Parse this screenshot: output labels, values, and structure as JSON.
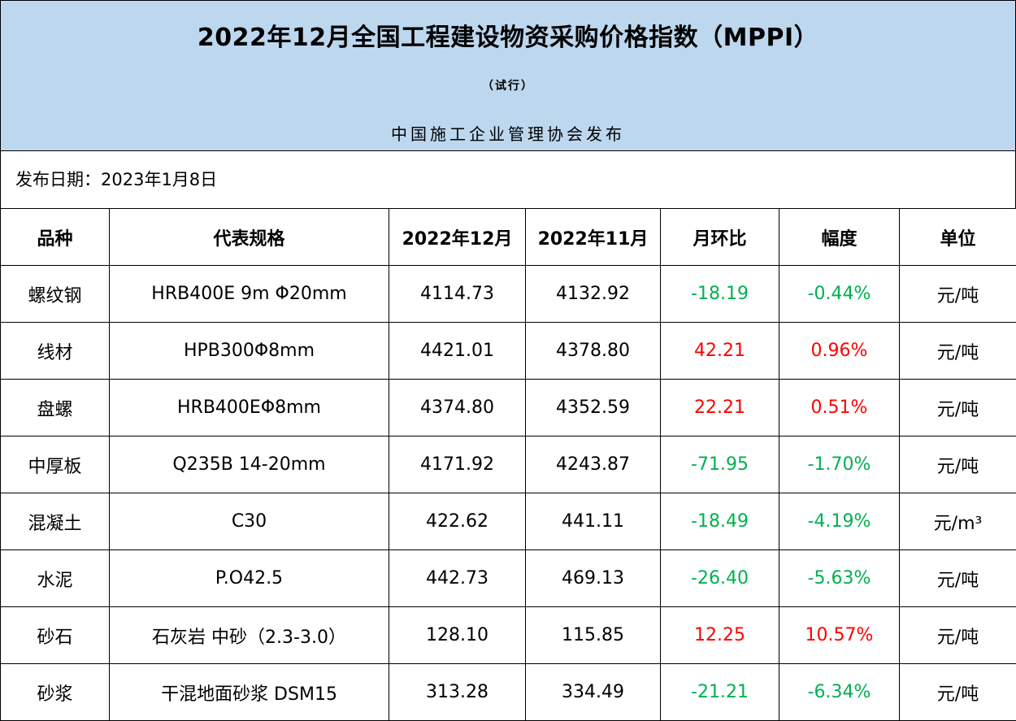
{
  "header": {
    "title": "2022年12月全国工程建设物资采购价格指数（MPPI）",
    "subtitle": "（试行）",
    "publisher": "中国施工企业管理协会发布"
  },
  "release": {
    "label": "发布日期：",
    "date": "2023年1月8日"
  },
  "colors": {
    "header_bg": "#bdd7ee",
    "decrease": "#00b050",
    "increase": "#ff0000"
  },
  "table": {
    "columns": [
      "品种",
      "代表规格",
      "2022年12月",
      "2022年11月",
      "月环比",
      "幅度",
      "单位"
    ],
    "rows": [
      {
        "name": "螺纹钢",
        "spec": "HRB400E 9m Φ20mm",
        "dec": "4114.73",
        "nov": "4132.92",
        "mom": "-18.19",
        "pct": "-0.44%",
        "unit": "元/吨",
        "trend": "down"
      },
      {
        "name": "线材",
        "spec": "HPB300Φ8mm",
        "dec": "4421.01",
        "nov": "4378.80",
        "mom": "42.21",
        "pct": "0.96%",
        "unit": "元/吨",
        "trend": "up"
      },
      {
        "name": "盘螺",
        "spec": "HRB400EΦ8mm",
        "dec": "4374.80",
        "nov": "4352.59",
        "mom": "22.21",
        "pct": "0.51%",
        "unit": "元/吨",
        "trend": "up"
      },
      {
        "name": "中厚板",
        "spec": "Q235B 14-20mm",
        "dec": "4171.92",
        "nov": "4243.87",
        "mom": "-71.95",
        "pct": "-1.70%",
        "unit": "元/吨",
        "trend": "down"
      },
      {
        "name": "混凝土",
        "spec": "C30",
        "dec": "422.62",
        "nov": "441.11",
        "mom": "-18.49",
        "pct": "-4.19%",
        "unit": "元/m³",
        "trend": "down"
      },
      {
        "name": "水泥",
        "spec": "P.O42.5",
        "dec": "442.73",
        "nov": "469.13",
        "mom": "-26.40",
        "pct": "-5.63%",
        "unit": "元/吨",
        "trend": "down"
      },
      {
        "name": "砂石",
        "spec": "石灰岩 中砂（2.3-3.0）",
        "dec": "128.10",
        "nov": "115.85",
        "mom": "12.25",
        "pct": "10.57%",
        "unit": "元/吨",
        "trend": "up"
      },
      {
        "name": "砂浆",
        "spec": "干混地面砂浆 DSM15",
        "dec": "313.28",
        "nov": "334.49",
        "mom": "-21.21",
        "pct": "-6.34%",
        "unit": "元/吨",
        "trend": "down"
      }
    ]
  }
}
